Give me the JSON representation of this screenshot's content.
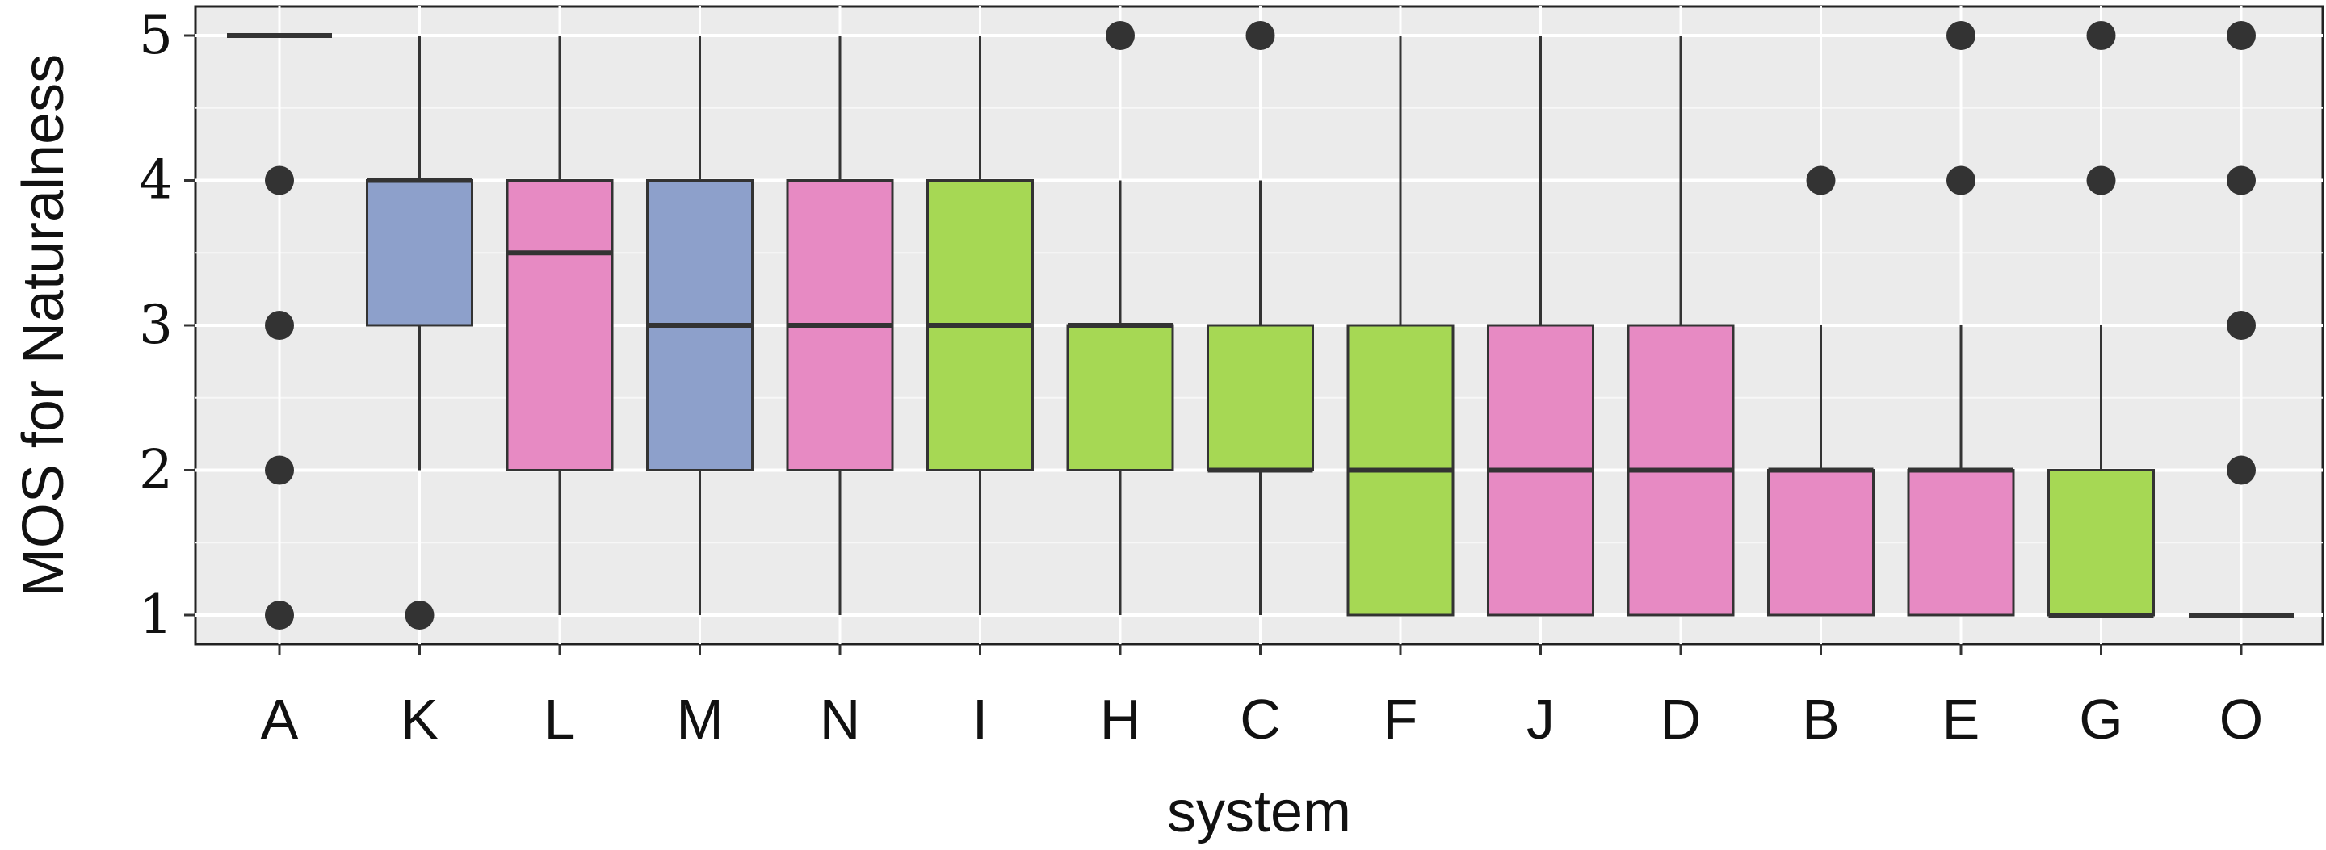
{
  "chart_data": {
    "type": "box",
    "xlabel": "system",
    "ylabel": "MOS for Naturalness",
    "ylim": [
      0.8,
      5.2
    ],
    "yticks": [
      1,
      2,
      3,
      4,
      5
    ],
    "grid": true,
    "background": "#ebebeb",
    "colors": {
      "blue": "#8da0cb",
      "pink": "#e78ac3",
      "green": "#a6d854"
    },
    "boxes": [
      {
        "category": "A",
        "color": "blue",
        "q1": 5,
        "median": 5,
        "q3": 5,
        "whisker_low": 5,
        "whisker_high": 5,
        "outliers": [
          1,
          2,
          3,
          4
        ]
      },
      {
        "category": "K",
        "color": "blue",
        "q1": 3,
        "median": 4,
        "q3": 4,
        "whisker_low": 2,
        "whisker_high": 5,
        "outliers": [
          1
        ]
      },
      {
        "category": "L",
        "color": "pink",
        "q1": 2,
        "median": 3.5,
        "q3": 4,
        "whisker_low": 1,
        "whisker_high": 5,
        "outliers": []
      },
      {
        "category": "M",
        "color": "blue",
        "q1": 2,
        "median": 3,
        "q3": 4,
        "whisker_low": 1,
        "whisker_high": 5,
        "outliers": []
      },
      {
        "category": "N",
        "color": "pink",
        "q1": 2,
        "median": 3,
        "q3": 4,
        "whisker_low": 1,
        "whisker_high": 5,
        "outliers": []
      },
      {
        "category": "I",
        "color": "green",
        "q1": 2,
        "median": 3,
        "q3": 4,
        "whisker_low": 1,
        "whisker_high": 5,
        "outliers": []
      },
      {
        "category": "H",
        "color": "green",
        "q1": 2,
        "median": 3,
        "q3": 3,
        "whisker_low": 1,
        "whisker_high": 4,
        "outliers": [
          5
        ]
      },
      {
        "category": "C",
        "color": "green",
        "q1": 2,
        "median": 2,
        "q3": 3,
        "whisker_low": 1,
        "whisker_high": 4,
        "outliers": [
          5
        ]
      },
      {
        "category": "F",
        "color": "green",
        "q1": 1,
        "median": 2,
        "q3": 3,
        "whisker_low": 1,
        "whisker_high": 5,
        "outliers": []
      },
      {
        "category": "J",
        "color": "pink",
        "q1": 1,
        "median": 2,
        "q3": 3,
        "whisker_low": 1,
        "whisker_high": 5,
        "outliers": []
      },
      {
        "category": "D",
        "color": "pink",
        "q1": 1,
        "median": 2,
        "q3": 3,
        "whisker_low": 1,
        "whisker_high": 5,
        "outliers": []
      },
      {
        "category": "B",
        "color": "pink",
        "q1": 1,
        "median": 2,
        "q3": 2,
        "whisker_low": 1,
        "whisker_high": 3,
        "outliers": [
          4
        ]
      },
      {
        "category": "E",
        "color": "pink",
        "q1": 1,
        "median": 2,
        "q3": 2,
        "whisker_low": 1,
        "whisker_high": 3,
        "outliers": [
          4,
          5
        ]
      },
      {
        "category": "G",
        "color": "green",
        "q1": 1,
        "median": 1,
        "q3": 2,
        "whisker_low": 1,
        "whisker_high": 3,
        "outliers": [
          4,
          5
        ]
      },
      {
        "category": "O",
        "color": "blue",
        "q1": 1,
        "median": 1,
        "q3": 1,
        "whisker_low": 1,
        "whisker_high": 1,
        "outliers": [
          2,
          3,
          4,
          5
        ]
      }
    ]
  }
}
